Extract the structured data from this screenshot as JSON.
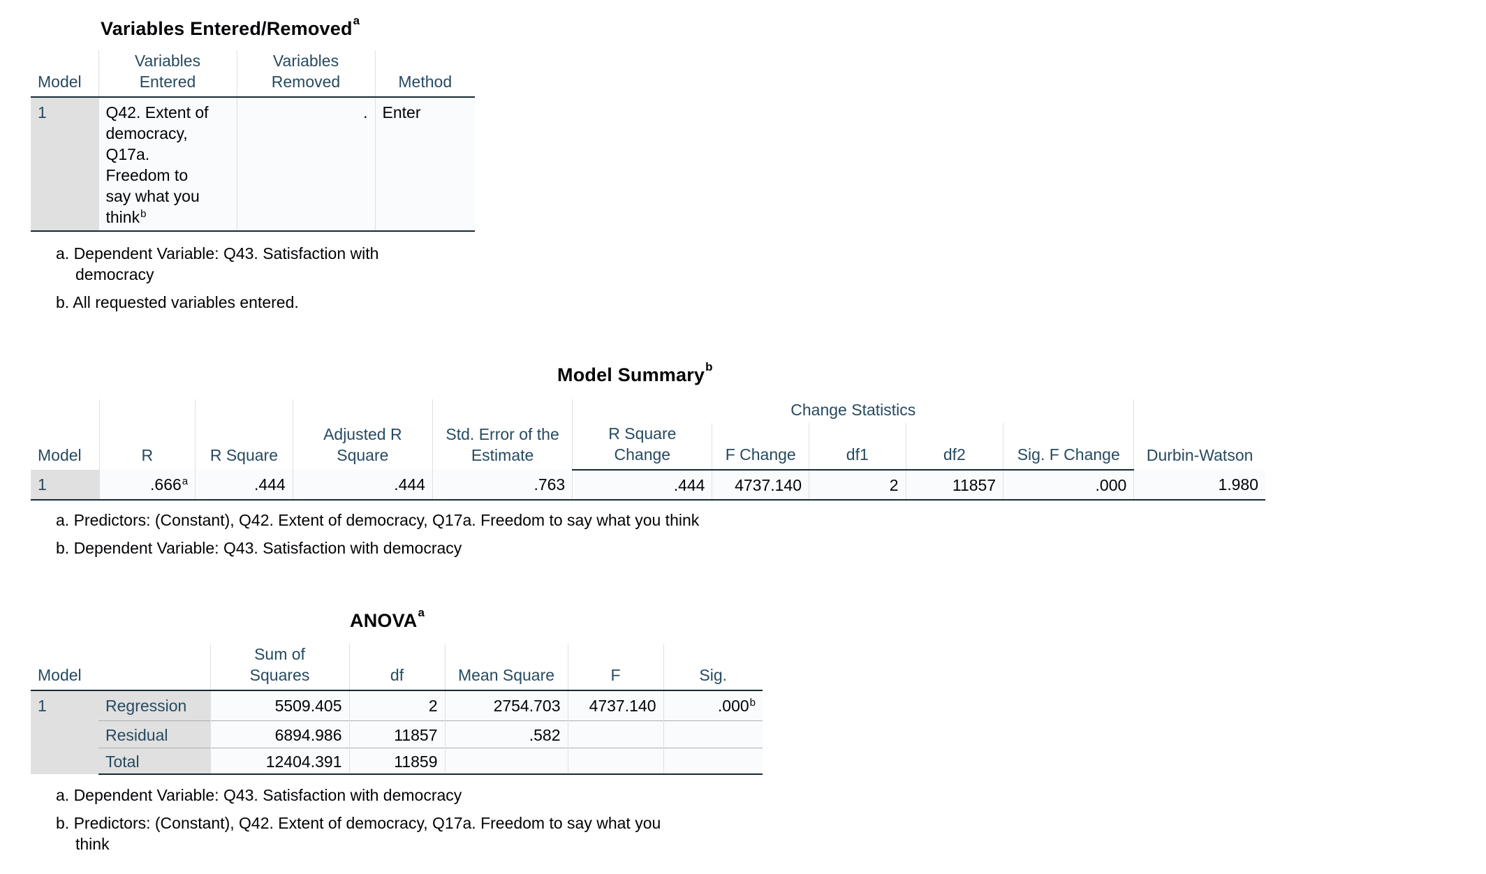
{
  "table1": {
    "title": "Variables Entered/Removed",
    "title_sup": "a",
    "headers": {
      "model": "Model",
      "entered_1": "Variables",
      "entered_2": "Entered",
      "removed_1": "Variables",
      "removed_2": "Removed",
      "method": "Method"
    },
    "row": {
      "model": "1",
      "entered_lines": [
        "Q42. Extent of",
        "democracy,",
        "Q17a.",
        "Freedom to",
        "say what you",
        "think"
      ],
      "entered_sup": "b",
      "removed": ".",
      "method": "Enter"
    },
    "footnotes": {
      "a_1": "a. Dependent Variable: Q43. Satisfaction with",
      "a_2": "democracy",
      "b": "b. All requested variables entered."
    }
  },
  "table2": {
    "title": "Model Summary",
    "title_sup": "b",
    "group_header": "Change Statistics",
    "headers": {
      "model": "Model",
      "r": "R",
      "r_square": "R Square",
      "adj_1": "Adjusted R",
      "adj_2": "Square",
      "std_1": "Std. Error of the",
      "std_2": "Estimate",
      "rsc_1": "R Square",
      "rsc_2": "Change",
      "f_change": "F Change",
      "df1": "df1",
      "df2": "df2",
      "sig_f": "Sig. F Change",
      "dw": "Durbin-Watson"
    },
    "row": {
      "model": "1",
      "r": ".666",
      "r_sup": "a",
      "r_square": ".444",
      "adj_r_square": ".444",
      "std_error": ".763",
      "r_square_change": ".444",
      "f_change": "4737.140",
      "df1": "2",
      "df2": "11857",
      "sig_f_change": ".000",
      "durbin_watson": "1.980"
    },
    "footnotes": {
      "a": "a. Predictors: (Constant), Q42. Extent of democracy, Q17a. Freedom to say what you think",
      "b": "b. Dependent Variable: Q43. Satisfaction with democracy"
    }
  },
  "table3": {
    "title": "ANOVA",
    "title_sup": "a",
    "headers": {
      "model": "Model",
      "ss_1": "Sum of",
      "ss_2": "Squares",
      "df": "df",
      "ms": "Mean Square",
      "f": "F",
      "sig": "Sig."
    },
    "model": "1",
    "rows": [
      {
        "label": "Regression",
        "ss": "5509.405",
        "df": "2",
        "ms": "2754.703",
        "f": "4737.140",
        "sig": ".000",
        "sig_sup": "b"
      },
      {
        "label": "Residual",
        "ss": "6894.986",
        "df": "11857",
        "ms": ".582",
        "f": "",
        "sig": ""
      },
      {
        "label": "Total",
        "ss": "12404.391",
        "df": "11859",
        "ms": "",
        "f": "",
        "sig": ""
      }
    ],
    "footnotes": {
      "a": "a. Dependent Variable: Q43. Satisfaction with democracy",
      "b_1": "b. Predictors: (Constant), Q42. Extent of democracy, Q17a. Freedom to say what you",
      "b_2": "think"
    }
  }
}
